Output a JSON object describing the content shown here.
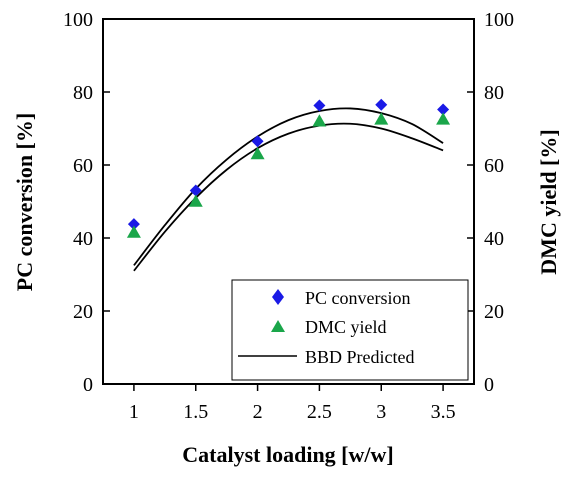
{
  "chart_data": {
    "type": "scatter",
    "xlabel": "Catalyst loading [w/w]",
    "ylabel": "PC conversion [%]",
    "y2label": "DMC yield [%]",
    "xlim": [
      0.75,
      3.75
    ],
    "ylim": [
      0,
      100
    ],
    "y2lim": [
      0,
      100
    ],
    "xticks": [
      1,
      1.5,
      2,
      2.5,
      3,
      3.5
    ],
    "xtick_labels": [
      "1",
      "1.5",
      "2",
      "2.5",
      "3",
      "3.5"
    ],
    "yticks": [
      0,
      20,
      40,
      60,
      80,
      100
    ],
    "ytick_labels": [
      "0",
      "20",
      "40",
      "60",
      "80",
      "100"
    ],
    "y2ticks": [
      0,
      20,
      40,
      60,
      80,
      100
    ],
    "y2tick_labels": [
      "0",
      "20",
      "40",
      "60",
      "80",
      "100"
    ],
    "grid": false,
    "legend_position": "bottom-right",
    "series": [
      {
        "name": "PC conversion",
        "kind": "points",
        "marker": "diamond",
        "color": "#1a1ae6",
        "x": [
          1,
          1.5,
          2,
          2.5,
          3,
          3.5
        ],
        "y": [
          43.8,
          53,
          66.5,
          76.3,
          76.5,
          75.2
        ]
      },
      {
        "name": "DMC yield",
        "kind": "points",
        "marker": "triangle",
        "color": "#1aa64a",
        "x": [
          1,
          1.5,
          2,
          2.5,
          3,
          3.5
        ],
        "y": [
          41.5,
          50,
          63,
          72,
          72.5,
          72.5
        ]
      },
      {
        "name": "BBD Predicted",
        "kind": "line",
        "color": "#000000",
        "x": [
          1,
          1.25,
          1.5,
          1.75,
          2,
          2.25,
          2.5,
          2.75,
          3,
          3.25,
          3.5
        ],
        "y": [
          32.5,
          43.5,
          53.5,
          61.5,
          67.8,
          72.3,
          74.8,
          75.5,
          74.2,
          71.2,
          66
        ]
      },
      {
        "name": "",
        "kind": "line",
        "color": "#000000",
        "x": [
          1,
          1.25,
          1.5,
          1.75,
          2,
          2.25,
          2.5,
          2.75,
          3,
          3.25,
          3.5
        ],
        "y": [
          31,
          41.7,
          51,
          58.7,
          64.6,
          68.6,
          70.8,
          71.3,
          70,
          67.3,
          64
        ]
      }
    ]
  }
}
